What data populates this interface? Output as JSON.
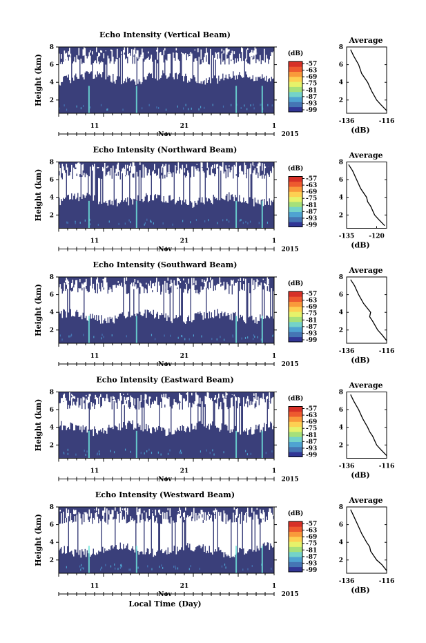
{
  "page": {
    "xlabel": "Local Time (Day)",
    "month_label": "Nov",
    "year_label": "2015",
    "average_title": "Average",
    "colorbar_unit": "(dB)",
    "avg_xlabel": "(dB)",
    "ylabel": "Height (km)"
  },
  "chart_data": [
    {
      "type": "heatmap",
      "title": "Echo Intensity (Vertical Beam)",
      "ylabel": "Height (km)",
      "xlabel": "Local Time (Day)",
      "xticks": [
        "11",
        "21",
        "1"
      ],
      "yticks": [
        "2",
        "4",
        "6",
        "8"
      ],
      "xlim": [
        "2015-11-07",
        "2015-12-01"
      ],
      "ylim": [
        0.5,
        8
      ],
      "colorbar": {
        "unit": "(dB)",
        "ticks": [
          "-57",
          "-63",
          "-69",
          "-75",
          "-81",
          "-87",
          "-93",
          "-99"
        ]
      },
      "clear_air_top_km": 4.4,
      "profile": {
        "title": "Average",
        "xlabel": "(dB)",
        "xticks": [
          "-136",
          "-116"
        ],
        "xlim": [
          -136,
          -116
        ],
        "height_km": [
          0.8,
          1.5,
          2.0,
          3.0,
          3.5,
          4.0,
          5.0,
          6.0,
          7.0,
          7.7
        ],
        "intensity_db": [
          -116,
          -119,
          -121,
          -123.5,
          -124.5,
          -125.5,
          -128.5,
          -130,
          -132.5,
          -134
        ]
      }
    },
    {
      "type": "heatmap",
      "title": "Echo Intensity (Northward Beam)",
      "ylabel": "Height (km)",
      "xlabel": "Local Time (Day)",
      "xticks": [
        "11",
        "21",
        "1"
      ],
      "yticks": [
        "2",
        "4",
        "6",
        "8"
      ],
      "xlim": [
        "2015-11-07",
        "2015-12-01"
      ],
      "ylim": [
        0.5,
        8
      ],
      "colorbar": {
        "unit": "(dB)",
        "ticks": [
          "-57",
          "-63",
          "-69",
          "-75",
          "-81",
          "-87",
          "-93",
          "-99"
        ]
      },
      "clear_air_top_km": 3.6,
      "profile": {
        "title": "Average",
        "xlabel": "(dB)",
        "xticks": [
          "-135",
          "-120"
        ],
        "xlim": [
          -135,
          -115
        ],
        "height_km": [
          0.8,
          1.5,
          2.0,
          3.0,
          3.5,
          4.0,
          5.0,
          6.0,
          7.0,
          7.7
        ],
        "intensity_db": [
          -116,
          -119,
          -121,
          -123,
          -124.5,
          -125,
          -128,
          -130,
          -132,
          -134
        ]
      }
    },
    {
      "type": "heatmap",
      "title": "Echo Intensity (Southward Beam)",
      "ylabel": "Height (km)",
      "xlabel": "Local Time (Day)",
      "xticks": [
        "11",
        "21",
        "1"
      ],
      "yticks": [
        "2",
        "4",
        "6",
        "8"
      ],
      "xlim": [
        "2015-11-07",
        "2015-12-01"
      ],
      "ylim": [
        0.5,
        8
      ],
      "colorbar": {
        "unit": "(dB)",
        "ticks": [
          "-57",
          "-63",
          "-69",
          "-75",
          "-81",
          "-87",
          "-93",
          "-99"
        ]
      },
      "clear_air_top_km": 3.4,
      "profile": {
        "title": "Average",
        "xlabel": "(dB)",
        "xticks": [
          "-136",
          "-116"
        ],
        "xlim": [
          -136,
          -116
        ],
        "height_km": [
          0.8,
          1.5,
          2.0,
          3.0,
          3.5,
          4.0,
          5.0,
          6.0,
          7.0,
          7.7
        ],
        "intensity_db": [
          -116,
          -118.5,
          -120.5,
          -123,
          -124.5,
          -124,
          -127.5,
          -130,
          -132,
          -134
        ]
      }
    },
    {
      "type": "heatmap",
      "title": "Echo Intensity (Eastward Beam)",
      "ylabel": "Height (km)",
      "xlabel": "Local Time (Day)",
      "xticks": [
        "11",
        "21",
        "1"
      ],
      "yticks": [
        "2",
        "4",
        "6",
        "8"
      ],
      "xlim": [
        "2015-11-07",
        "2015-12-01"
      ],
      "ylim": [
        0.5,
        8
      ],
      "colorbar": {
        "unit": "(dB)",
        "ticks": [
          "-57",
          "-63",
          "-69",
          "-75",
          "-81",
          "-87",
          "-93",
          "-99"
        ]
      },
      "clear_air_top_km": 3.8,
      "profile": {
        "title": "Average",
        "xlabel": "(dB)",
        "xticks": [
          "-136",
          "-116"
        ],
        "xlim": [
          -136,
          -116
        ],
        "height_km": [
          0.8,
          1.5,
          2.0,
          3.0,
          3.5,
          4.0,
          5.0,
          6.0,
          7.0,
          7.7
        ],
        "intensity_db": [
          -116,
          -119,
          -121,
          -123,
          -124.5,
          -125.5,
          -128,
          -130,
          -132.5,
          -134
        ]
      }
    },
    {
      "type": "heatmap",
      "title": "Echo Intensity (Westward Beam)",
      "ylabel": "Height (km)",
      "xlabel": "Local Time (Day)",
      "xticks": [
        "11",
        "21",
        "1"
      ],
      "yticks": [
        "2",
        "4",
        "6",
        "8"
      ],
      "xlim": [
        "2015-11-07",
        "2015-12-01"
      ],
      "ylim": [
        0.5,
        8
      ],
      "colorbar": {
        "unit": "(dB)",
        "ticks": [
          "-57",
          "-63",
          "-69",
          "-75",
          "-81",
          "-87",
          "-93",
          "-99"
        ]
      },
      "clear_air_top_km": 3.0,
      "profile": {
        "title": "Average",
        "xlabel": "(dB)",
        "xticks": [
          "-136",
          "-116"
        ],
        "xlim": [
          -136,
          -116
        ],
        "height_km": [
          0.8,
          1.5,
          2.0,
          3.0,
          3.5,
          4.0,
          5.0,
          6.0,
          7.0,
          7.7
        ],
        "intensity_db": [
          -116,
          -118.5,
          -121,
          -124,
          -124.5,
          -126,
          -128.5,
          -130.5,
          -132.5,
          -134
        ]
      }
    }
  ],
  "colors": {
    "background": "#3a3f7a",
    "scale": [
      "#313695",
      "#4575b4",
      "#4fa3d1",
      "#74d3c9",
      "#a6e07a",
      "#e6f26a",
      "#fdd052",
      "#f99a3b",
      "#ee5a2f",
      "#d73027"
    ],
    "spike": "#6fe3d9"
  }
}
